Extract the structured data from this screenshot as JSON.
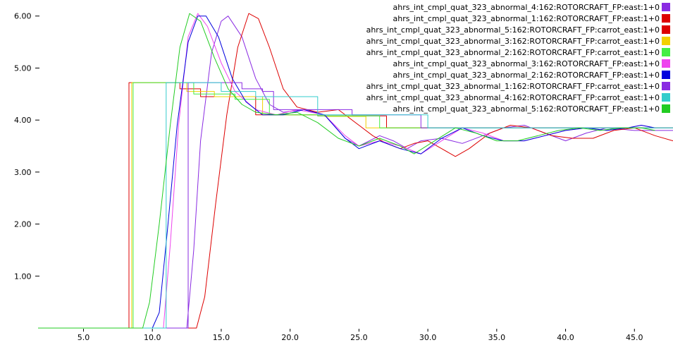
{
  "chart_data": {
    "type": "line",
    "title": "",
    "xlabel": "",
    "ylabel": "",
    "xlim": [
      1.7,
      47.8
    ],
    "ylim": [
      0.0,
      6.2
    ],
    "grid": false,
    "legend_position": "top-right",
    "x_ticks": [
      "5.0",
      "10.0",
      "15.0",
      "20.0",
      "25.0",
      "30.0",
      "35.0",
      "40.0",
      "45.0"
    ],
    "y_ticks": [
      "1.00",
      "2.00",
      "3.00",
      "4.00",
      "5.00",
      "6.00"
    ],
    "series": [
      {
        "name": "ahrs_int_cmpl_quat_323_abnormal_4:162:ROTORCRAFT_FP:east:1+0",
        "color": "#8a2be2",
        "points": [
          [
            1.7,
            0
          ],
          [
            12.5,
            0
          ],
          [
            13.0,
            1.5
          ],
          [
            13.5,
            3.6
          ],
          [
            14.3,
            5.3
          ],
          [
            15.0,
            5.9
          ],
          [
            15.5,
            6.0
          ],
          [
            16.5,
            5.6
          ],
          [
            17.5,
            4.8
          ],
          [
            18.5,
            4.3
          ],
          [
            19.5,
            4.15
          ],
          [
            21.0,
            4.2
          ],
          [
            22.5,
            4.1
          ],
          [
            24.0,
            3.65
          ],
          [
            25.0,
            3.5
          ],
          [
            26.5,
            3.7
          ],
          [
            27.5,
            3.6
          ],
          [
            28.5,
            3.45
          ],
          [
            29.5,
            3.6
          ],
          [
            31.0,
            3.65
          ],
          [
            32.5,
            3.55
          ],
          [
            34.0,
            3.7
          ],
          [
            35.5,
            3.85
          ],
          [
            37.0,
            3.9
          ],
          [
            38.5,
            3.75
          ],
          [
            40.0,
            3.6
          ],
          [
            41.5,
            3.75
          ],
          [
            43.0,
            3.85
          ],
          [
            45.0,
            3.8
          ],
          [
            47.8,
            3.8
          ]
        ]
      },
      {
        "name": "ahrs_int_cmpl_quat_323_abnormal_1:162:ROTORCRAFT_FP:east:1+0",
        "color": "#dd0000",
        "points": [
          [
            1.7,
            0
          ],
          [
            13.2,
            0
          ],
          [
            13.8,
            0.6
          ],
          [
            14.6,
            2.4
          ],
          [
            15.4,
            4.1
          ],
          [
            16.2,
            5.4
          ],
          [
            17.0,
            6.05
          ],
          [
            17.7,
            5.95
          ],
          [
            18.5,
            5.4
          ],
          [
            19.5,
            4.6
          ],
          [
            20.5,
            4.25
          ],
          [
            22.0,
            4.15
          ],
          [
            23.5,
            4.2
          ],
          [
            25.0,
            3.9
          ],
          [
            26.0,
            3.7
          ],
          [
            27.0,
            3.55
          ],
          [
            28.0,
            3.45
          ],
          [
            29.0,
            3.55
          ],
          [
            30.0,
            3.6
          ],
          [
            31.0,
            3.45
          ],
          [
            32.0,
            3.3
          ],
          [
            33.0,
            3.45
          ],
          [
            34.5,
            3.75
          ],
          [
            36.0,
            3.9
          ],
          [
            37.5,
            3.85
          ],
          [
            39.0,
            3.7
          ],
          [
            40.5,
            3.65
          ],
          [
            42.0,
            3.65
          ],
          [
            43.5,
            3.8
          ],
          [
            45.0,
            3.85
          ],
          [
            46.5,
            3.7
          ],
          [
            47.8,
            3.6
          ]
        ]
      },
      {
        "name": "ahrs_int_cmpl_quat_323_abnormal_5:162:ROTORCRAFT_FP:carrot_east:1+0",
        "color": "#dd0000",
        "points": [
          [
            1.7,
            0
          ],
          [
            8.3,
            0
          ],
          [
            8.3,
            4.72
          ],
          [
            12.0,
            4.72
          ],
          [
            12.0,
            4.6
          ],
          [
            13.5,
            4.6
          ],
          [
            13.5,
            4.45
          ],
          [
            17.5,
            4.45
          ],
          [
            17.5,
            4.1
          ],
          [
            22.0,
            4.1
          ],
          [
            22.0,
            4.08
          ],
          [
            27.0,
            4.08
          ],
          [
            27.0,
            3.85
          ],
          [
            47.8,
            3.85
          ]
        ]
      },
      {
        "name": "ahrs_int_cmpl_quat_323_abnormal_3:162:ROTORCRAFT_FP:carrot_east:1+0",
        "color": "#f2d000",
        "points": [
          [
            1.7,
            0
          ],
          [
            8.5,
            0
          ],
          [
            8.5,
            4.72
          ],
          [
            12.5,
            4.72
          ],
          [
            12.5,
            4.55
          ],
          [
            14.5,
            4.55
          ],
          [
            14.5,
            4.45
          ],
          [
            18.0,
            4.45
          ],
          [
            18.0,
            4.1
          ],
          [
            22.5,
            4.1
          ],
          [
            22.5,
            4.07
          ],
          [
            25.5,
            4.07
          ],
          [
            25.5,
            3.85
          ],
          [
            47.8,
            3.85
          ]
        ]
      },
      {
        "name": "ahrs_int_cmpl_quat_323_abnormal_2:162:ROTORCRAFT_FP:carrot_east:1+0",
        "color": "#44ee44",
        "points": [
          [
            1.7,
            0
          ],
          [
            8.6,
            0
          ],
          [
            8.6,
            4.72
          ],
          [
            13.0,
            4.72
          ],
          [
            13.0,
            4.5
          ],
          [
            16.0,
            4.5
          ],
          [
            16.0,
            4.4
          ],
          [
            18.5,
            4.4
          ],
          [
            18.5,
            4.1
          ],
          [
            22.0,
            4.1
          ],
          [
            22.0,
            4.08
          ],
          [
            26.5,
            4.08
          ],
          [
            26.5,
            3.85
          ],
          [
            47.8,
            3.85
          ]
        ]
      },
      {
        "name": "ahrs_int_cmpl_quat_323_abnormal_3:162:ROTORCRAFT_FP:east:1+0",
        "color": "#ee44ee",
        "points": [
          [
            1.7,
            0
          ],
          [
            10.8,
            0
          ],
          [
            11.3,
            1.6
          ],
          [
            11.9,
            3.9
          ],
          [
            12.6,
            5.6
          ],
          [
            13.3,
            6.05
          ],
          [
            14.0,
            5.8
          ],
          [
            15.0,
            5.1
          ],
          [
            16.0,
            4.55
          ],
          [
            17.5,
            4.2
          ],
          [
            19.0,
            4.1
          ],
          [
            20.5,
            4.2
          ],
          [
            22.5,
            4.1
          ],
          [
            24.0,
            3.7
          ],
          [
            25.0,
            3.5
          ],
          [
            26.5,
            3.6
          ],
          [
            28.0,
            3.5
          ],
          [
            29.5,
            3.35
          ],
          [
            31.0,
            3.6
          ],
          [
            32.5,
            3.85
          ],
          [
            34.0,
            3.75
          ],
          [
            35.5,
            3.6
          ],
          [
            37.0,
            3.6
          ],
          [
            38.5,
            3.7
          ],
          [
            40.0,
            3.8
          ],
          [
            41.5,
            3.85
          ],
          [
            43.0,
            3.8
          ],
          [
            44.5,
            3.85
          ],
          [
            45.5,
            3.9
          ],
          [
            46.5,
            3.85
          ]
        ]
      },
      {
        "name": "ahrs_int_cmpl_quat_323_abnormal_2:162:ROTORCRAFT_FP:east:1+0",
        "color": "#0000dd",
        "points": [
          [
            1.7,
            0
          ],
          [
            10.0,
            0
          ],
          [
            10.5,
            0.3
          ],
          [
            11.1,
            1.9
          ],
          [
            11.8,
            3.9
          ],
          [
            12.6,
            5.5
          ],
          [
            13.3,
            6.0
          ],
          [
            13.9,
            6.0
          ],
          [
            14.8,
            5.6
          ],
          [
            15.8,
            4.8
          ],
          [
            16.8,
            4.35
          ],
          [
            18.0,
            4.1
          ],
          [
            19.5,
            4.1
          ],
          [
            21.0,
            4.2
          ],
          [
            22.5,
            4.1
          ],
          [
            24.0,
            3.65
          ],
          [
            25.0,
            3.45
          ],
          [
            26.5,
            3.6
          ],
          [
            28.0,
            3.45
          ],
          [
            29.5,
            3.35
          ],
          [
            31.0,
            3.65
          ],
          [
            32.5,
            3.85
          ],
          [
            34.0,
            3.7
          ],
          [
            35.5,
            3.6
          ],
          [
            37.0,
            3.6
          ],
          [
            38.5,
            3.7
          ],
          [
            40.0,
            3.8
          ],
          [
            41.5,
            3.85
          ],
          [
            43.0,
            3.8
          ],
          [
            44.5,
            3.85
          ],
          [
            45.5,
            3.9
          ],
          [
            46.5,
            3.85
          ]
        ]
      },
      {
        "name": "ahrs_int_cmpl_quat_323_abnormal_1:162:ROTORCRAFT_FP:carrot_east:1+0",
        "color": "#8a2be2",
        "points": [
          [
            1.7,
            0
          ],
          [
            12.6,
            0
          ],
          [
            12.6,
            4.72
          ],
          [
            16.5,
            4.72
          ],
          [
            16.5,
            4.6
          ],
          [
            18.0,
            4.6
          ],
          [
            18.0,
            4.55
          ],
          [
            18.8,
            4.55
          ],
          [
            18.8,
            4.2
          ],
          [
            24.5,
            4.2
          ],
          [
            24.5,
            4.1
          ],
          [
            29.5,
            4.1
          ],
          [
            29.5,
            3.85
          ],
          [
            47.8,
            3.85
          ]
        ]
      },
      {
        "name": "ahrs_int_cmpl_quat_323_abnormal_4:162:ROTORCRAFT_FP:carrot_east:1+0",
        "color": "#33cccc",
        "points": [
          [
            1.7,
            0
          ],
          [
            11.0,
            0
          ],
          [
            11.0,
            4.72
          ],
          [
            15.0,
            4.72
          ],
          [
            15.0,
            4.55
          ],
          [
            17.5,
            4.55
          ],
          [
            17.5,
            4.45
          ],
          [
            21.5,
            4.45
          ],
          [
            21.5,
            4.45
          ],
          [
            22.0,
            4.45
          ],
          [
            22.0,
            4.1
          ],
          [
            30.0,
            4.1
          ],
          [
            30.0,
            3.85
          ],
          [
            47.8,
            3.85
          ]
        ]
      },
      {
        "name": "ahrs_int_cmpl_quat_323_abnormal_5:162:ROTORCRAFT_FP:east:1+0",
        "color": "#22cc22",
        "points": [
          [
            1.7,
            0
          ],
          [
            9.3,
            0
          ],
          [
            9.8,
            0.5
          ],
          [
            10.5,
            2.0
          ],
          [
            11.3,
            3.9
          ],
          [
            12.0,
            5.4
          ],
          [
            12.7,
            6.05
          ],
          [
            13.5,
            5.9
          ],
          [
            14.5,
            5.2
          ],
          [
            15.5,
            4.6
          ],
          [
            16.5,
            4.3
          ],
          [
            17.5,
            4.15
          ],
          [
            19.0,
            4.1
          ],
          [
            20.5,
            4.15
          ],
          [
            22.0,
            3.95
          ],
          [
            23.5,
            3.65
          ],
          [
            25.0,
            3.5
          ],
          [
            26.5,
            3.65
          ],
          [
            28.0,
            3.5
          ],
          [
            29.0,
            3.35
          ],
          [
            30.5,
            3.6
          ],
          [
            32.0,
            3.85
          ],
          [
            33.5,
            3.75
          ],
          [
            35.0,
            3.6
          ],
          [
            36.5,
            3.6
          ],
          [
            38.0,
            3.7
          ],
          [
            39.5,
            3.8
          ],
          [
            41.0,
            3.85
          ],
          [
            42.5,
            3.8
          ],
          [
            44.0,
            3.85
          ],
          [
            45.5,
            3.85
          ],
          [
            46.5,
            3.8
          ]
        ]
      }
    ],
    "legend_colors": [
      "#8a2be2",
      "#dd0000",
      "#dd0000",
      "#f2d000",
      "#44ee44",
      "#ee44ee",
      "#0000dd",
      "#8a2be2",
      "#33cccc",
      "#22cc22"
    ]
  }
}
